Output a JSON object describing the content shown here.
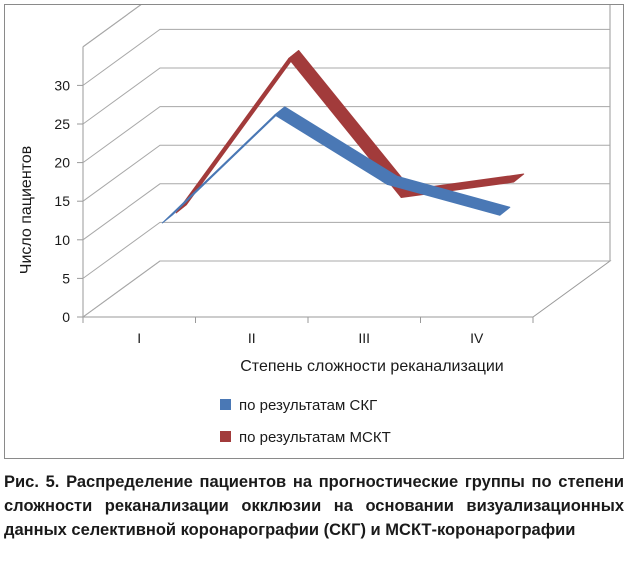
{
  "chart_data": {
    "type": "line",
    "style": "3d-ribbon",
    "categories": [
      "I",
      "II",
      "III",
      "IV"
    ],
    "series": [
      {
        "name": "по результатам СКГ",
        "values": [
          10,
          24,
          15,
          11
        ],
        "color": "#4a78b5"
      },
      {
        "name": "по результатам МСКТ",
        "values": [
          10,
          30,
          12,
          14
        ],
        "color": "#a23b3b"
      }
    ],
    "yticks": [
      0,
      5,
      10,
      15,
      20,
      25,
      30
    ],
    "ylim": [
      0,
      35
    ],
    "xlabel": "Степень сложности реканализации",
    "ylabel": "Число пациентов",
    "grid": true,
    "legend_position": "bottom"
  },
  "caption": "Рис. 5. Распределение пациентов на прогностические группы по степени сложности реканализации окклюзии на основании визуализационных данных селективной коронарографии (СКГ) и МСКТ-коронарографии"
}
